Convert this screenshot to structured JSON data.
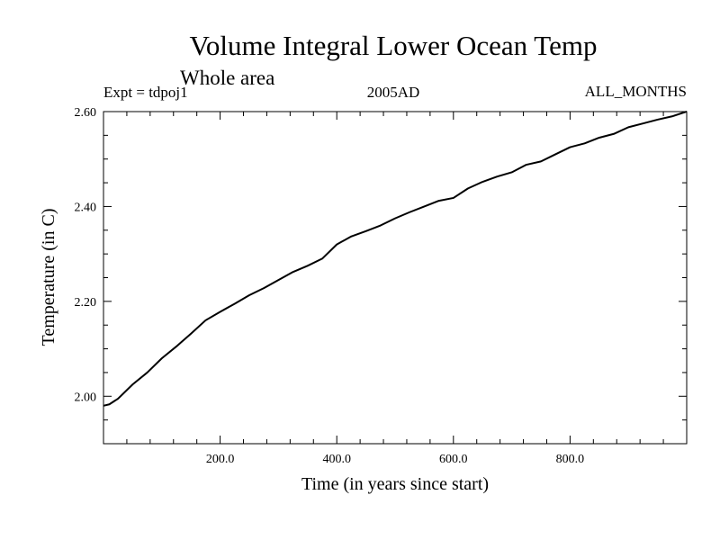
{
  "chart_data": {
    "type": "line",
    "title": "Volume Integral Lower Ocean Temp",
    "subtitle": "Whole area",
    "annotations": {
      "left": "Expt = tdpoj1",
      "center": "2005AD",
      "right": "ALL_MONTHS"
    },
    "xlabel": "Time (in years since start)",
    "ylabel": "Temperature (in C)",
    "xlim": [
      0,
      1000
    ],
    "ylim": [
      1.9,
      2.6
    ],
    "x_ticks": [
      200,
      400,
      600,
      800
    ],
    "x_tick_labels": [
      "200.0",
      "400.0",
      "600.0",
      "800.0"
    ],
    "x_minor_step": 40,
    "y_ticks": [
      2.0,
      2.2,
      2.4,
      2.6
    ],
    "y_tick_labels": [
      "2.00",
      "2.20",
      "2.40",
      "2.60"
    ],
    "y_minor_step": 0.05,
    "grid": false,
    "series": [
      {
        "name": "Volume Integral Lower Ocean Temp",
        "color": "#000000",
        "x": [
          0,
          10,
          25,
          50,
          75,
          100,
          125,
          150,
          175,
          200,
          225,
          250,
          275,
          300,
          325,
          350,
          375,
          400,
          425,
          450,
          475,
          500,
          525,
          550,
          575,
          600,
          625,
          650,
          675,
          700,
          725,
          750,
          775,
          800,
          825,
          850,
          875,
          900,
          925,
          950,
          975,
          1000
        ],
        "values": [
          1.98,
          1.983,
          1.995,
          2.025,
          2.05,
          2.08,
          2.105,
          2.132,
          2.16,
          2.178,
          2.195,
          2.213,
          2.228,
          2.245,
          2.262,
          2.275,
          2.29,
          2.32,
          2.337,
          2.348,
          2.36,
          2.375,
          2.388,
          2.4,
          2.412,
          2.418,
          2.438,
          2.452,
          2.463,
          2.472,
          2.488,
          2.495,
          2.51,
          2.525,
          2.533,
          2.545,
          2.553,
          2.567,
          2.575,
          2.583,
          2.59,
          2.6
        ]
      }
    ]
  }
}
